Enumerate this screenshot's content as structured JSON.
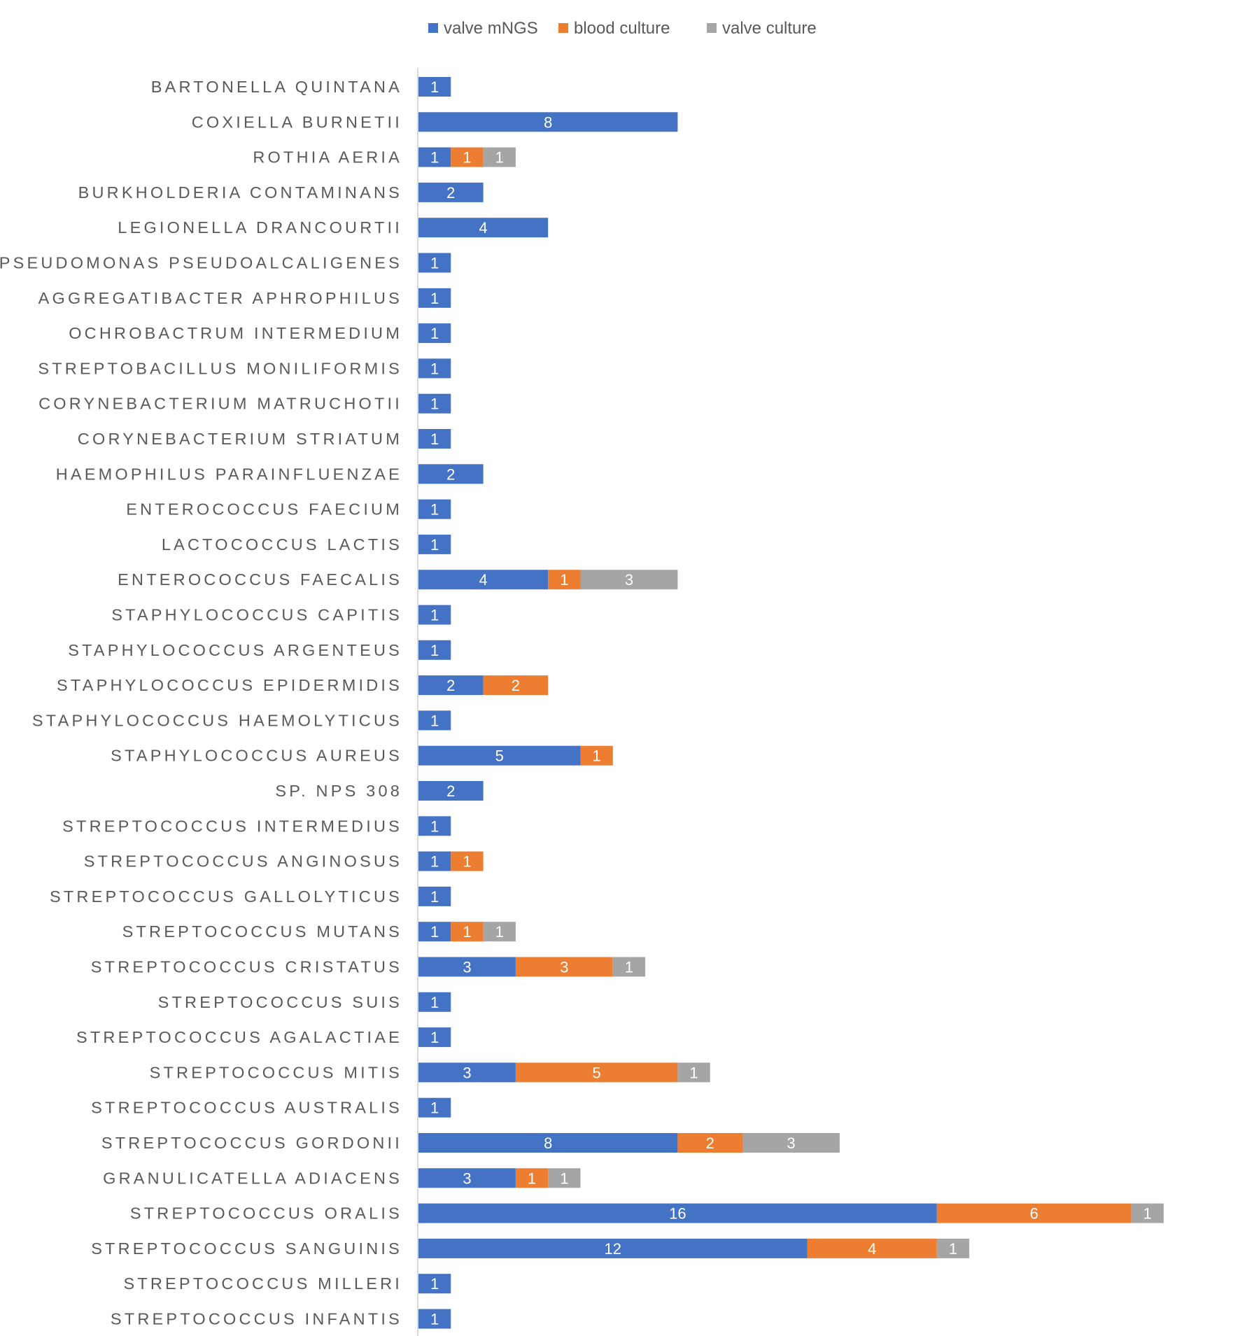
{
  "chart_data": {
    "type": "bar",
    "orientation": "horizontal",
    "stacked": true,
    "title": "",
    "xlabel": "",
    "ylabel": "",
    "xlim": [
      0,
      23
    ],
    "grid": false,
    "legend_position": "top",
    "categories": [
      "BARTONELLA QUINTANA",
      "COXIELLA BURNETII",
      "ROTHIA AERIA",
      "BURKHOLDERIA CONTAMINANS",
      "LEGIONELLA DRANCOURTII",
      "PSEUDOMONAS PSEUDOALCALIGENES",
      "AGGREGATIBACTER APHROPHILUS",
      "OCHROBACTRUM INTERMEDIUM",
      "STREPTOBACILLUS MONILIFORMIS",
      "CORYNEBACTERIUM MATRUCHOTII",
      "CORYNEBACTERIUM STRIATUM",
      "HAEMOPHILUS PARAINFLUENZAE",
      "ENTEROCOCCUS FAECIUM",
      "LACTOCOCCUS LACTIS",
      "ENTEROCOCCUS FAECALIS",
      "STAPHYLOCOCCUS CAPITIS",
      "STAPHYLOCOCCUS ARGENTEUS",
      "STAPHYLOCOCCUS EPIDERMIDIS",
      "STAPHYLOCOCCUS HAEMOLYTICUS",
      "STAPHYLOCOCCUS AUREUS",
      "SP. NPS 308",
      "STREPTOCOCCUS INTERMEDIUS",
      "STREPTOCOCCUS ANGINOSUS",
      "STREPTOCOCCUS GALLOLYTICUS",
      "STREPTOCOCCUS MUTANS",
      "STREPTOCOCCUS CRISTATUS",
      "STREPTOCOCCUS SUIS",
      "STREPTOCOCCUS AGALACTIAE",
      "STREPTOCOCCUS MITIS",
      "STREPTOCOCCUS AUSTRALIS",
      "STREPTOCOCCUS GORDONII",
      "GRANULICATELLA ADIACENS",
      "STREPTOCOCCUS ORALIS",
      "STREPTOCOCCUS SANGUINIS",
      "STREPTOCOCCUS MILLERI",
      "STREPTOCOCCUS INFANTIS"
    ],
    "series": [
      {
        "name": "valve mNGS",
        "color": "#4472C4",
        "values": [
          1,
          8,
          1,
          2,
          4,
          1,
          1,
          1,
          1,
          1,
          1,
          2,
          1,
          1,
          4,
          1,
          1,
          2,
          1,
          5,
          2,
          1,
          1,
          1,
          1,
          3,
          1,
          1,
          3,
          1,
          8,
          3,
          16,
          12,
          1,
          1
        ]
      },
      {
        "name": "blood culture",
        "color": "#ED7D31",
        "values": [
          0,
          0,
          1,
          0,
          0,
          0,
          0,
          0,
          0,
          0,
          0,
          0,
          0,
          0,
          1,
          0,
          0,
          2,
          0,
          1,
          0,
          0,
          1,
          0,
          1,
          3,
          0,
          0,
          5,
          0,
          2,
          1,
          6,
          4,
          0,
          0
        ]
      },
      {
        "name": "valve culture",
        "color": "#A5A5A5",
        "values": [
          0,
          0,
          1,
          0,
          0,
          0,
          0,
          0,
          0,
          0,
          0,
          0,
          0,
          0,
          3,
          0,
          0,
          0,
          0,
          0,
          0,
          0,
          0,
          0,
          1,
          1,
          0,
          0,
          1,
          0,
          3,
          1,
          1,
          1,
          0,
          0
        ]
      }
    ]
  }
}
